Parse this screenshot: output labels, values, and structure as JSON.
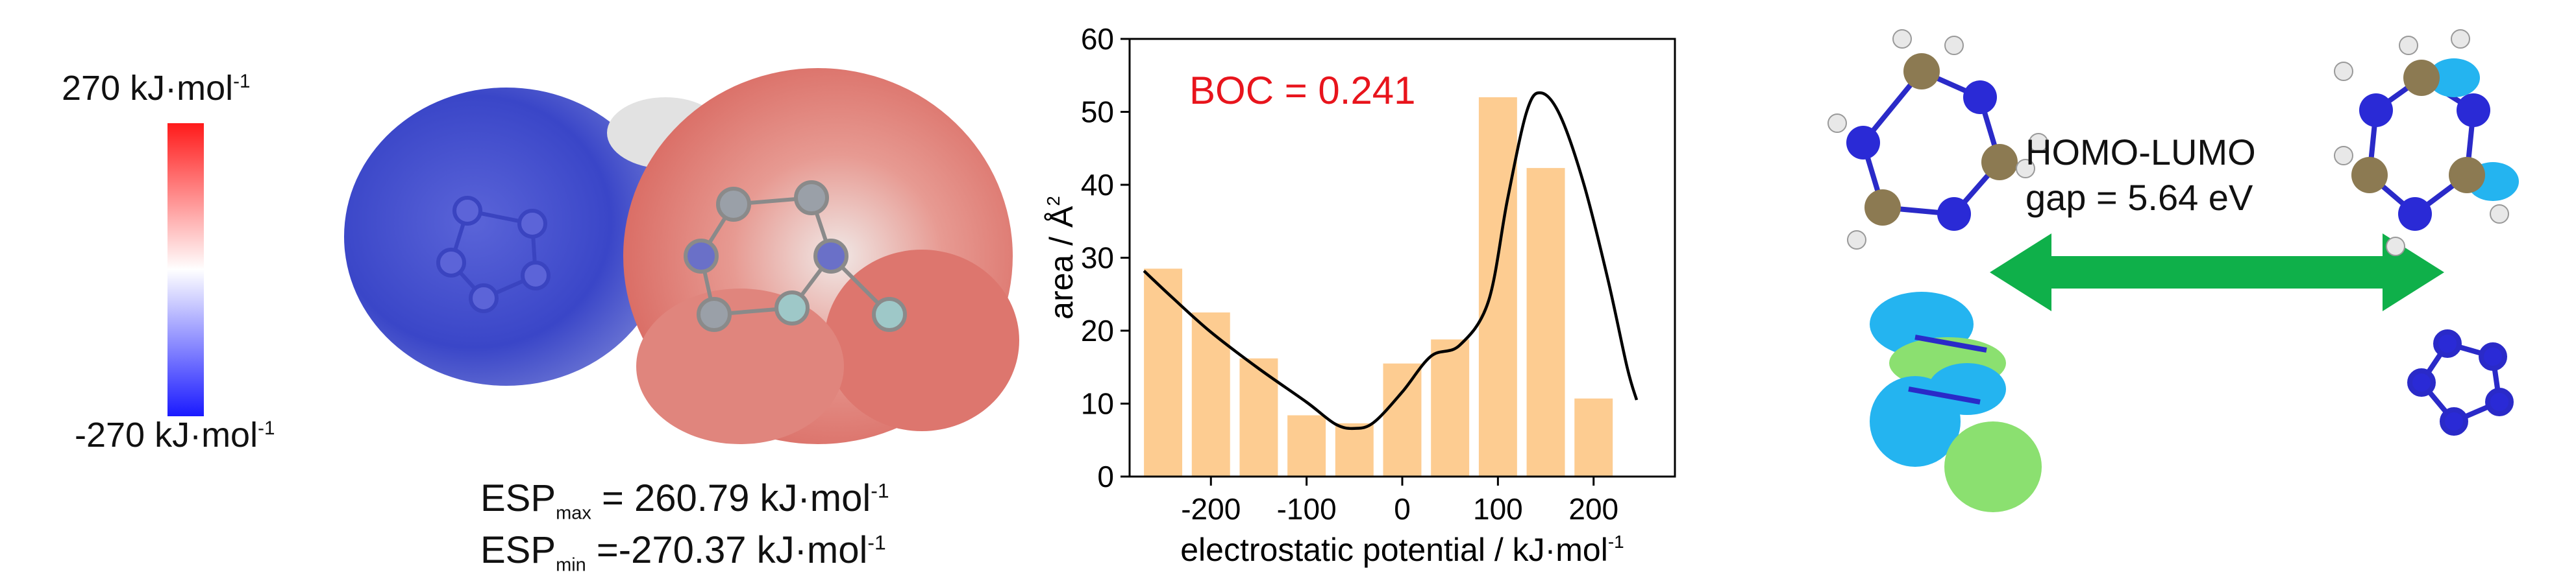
{
  "colorbar": {
    "max_value": "270 kJ·mol",
    "max_sup": "-1",
    "min_value": "-270 kJ·mol",
    "min_sup": "-1",
    "top_color": "#ff1a1a",
    "mid_color": "#ffffff",
    "bottom_color": "#1a1aff"
  },
  "esp": {
    "max_base": "ESP",
    "max_sub": "max",
    "max_value": " = 260.79 kJ·mol",
    "max_sup": "-1",
    "min_base": "ESP",
    "min_sub": "min",
    "min_value": " =-270.37 kJ·mol",
    "min_sup": "-1"
  },
  "homo_lumo": {
    "title": "HOMO-LUMO",
    "gap": "gap = 5.64 eV",
    "arrow_color": "#0fb04a"
  },
  "chart_data": {
    "type": "bar",
    "annotation": "BOC = 0.241",
    "annotation_color": "#e8141c",
    "bar_color": "#fdcc91",
    "curve_color": "#000000",
    "xlabel": "electrostatic potential / kJ·mol",
    "xlabel_sup": "-1",
    "ylabel": "area / Å",
    "ylabel_sup": "2",
    "xlim": [
      -285,
      285
    ],
    "ylim": [
      0,
      60
    ],
    "xticks": [
      -200,
      -100,
      0,
      100,
      200
    ],
    "yticks": [
      0,
      10,
      20,
      30,
      40,
      50,
      60
    ],
    "bin_centers": [
      -250,
      -200,
      -150,
      -100,
      -50,
      0,
      50,
      100,
      150,
      200,
      250
    ],
    "bin_width": 40,
    "values": [
      28.5,
      22.5,
      16.2,
      8.4,
      7.3,
      15.5,
      18.8,
      52.0,
      42.3,
      10.7,
      0
    ],
    "curve": [
      [
        -270,
        28.2
      ],
      [
        -240,
        24.5
      ],
      [
        -200,
        19.8
      ],
      [
        -150,
        14.8
      ],
      [
        -100,
        10.2
      ],
      [
        -70,
        7.2
      ],
      [
        -50,
        6.6
      ],
      [
        -30,
        7.4
      ],
      [
        0,
        11.6
      ],
      [
        30,
        16.5
      ],
      [
        60,
        18.0
      ],
      [
        90,
        24.0
      ],
      [
        110,
        38.0
      ],
      [
        130,
        50.0
      ],
      [
        145,
        52.6
      ],
      [
        165,
        49.5
      ],
      [
        190,
        40.0
      ],
      [
        215,
        27.0
      ],
      [
        235,
        15.0
      ],
      [
        245,
        10.5
      ]
    ]
  }
}
